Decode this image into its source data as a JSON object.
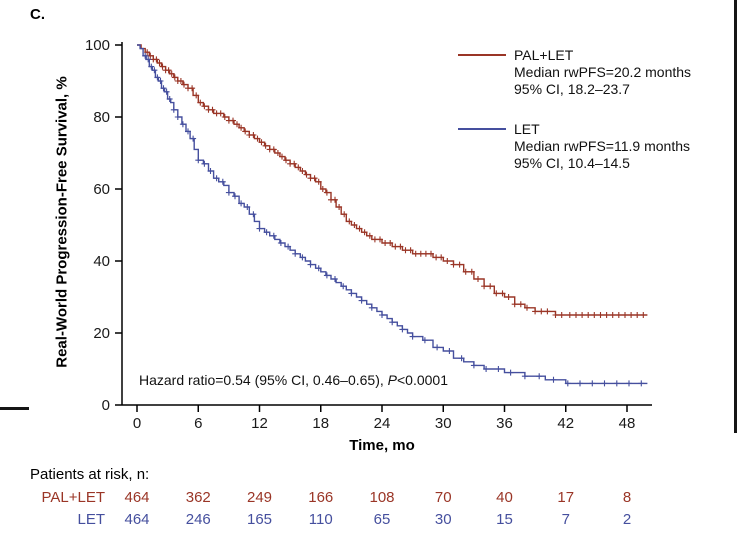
{
  "panel_label": "C.",
  "chart_data": {
    "type": "line",
    "subtype": "kaplan-meier-survival",
    "title": "",
    "xlabel": "Time, mo",
    "ylabel": "Real-World Progression-Free Survival, %",
    "x_ticks": [
      0,
      6,
      12,
      18,
      24,
      30,
      36,
      42,
      48
    ],
    "y_ticks": [
      0,
      20,
      40,
      60,
      80,
      100
    ],
    "xlim": [
      0,
      50
    ],
    "ylim": [
      0,
      100
    ],
    "grid": false,
    "legend_position": "top-right-inside",
    "series": [
      {
        "name": "PAL+LET",
        "color": "#9a3526",
        "median_label": "Median rwPFS=20.2 months",
        "ci_label": "95% CI, 18.2–23.7",
        "points": [
          [
            0,
            100
          ],
          [
            0.4,
            99
          ],
          [
            0.8,
            98
          ],
          [
            1.2,
            97
          ],
          [
            1.6,
            96
          ],
          [
            2,
            95
          ],
          [
            2.4,
            94
          ],
          [
            2.8,
            93
          ],
          [
            3.2,
            92
          ],
          [
            3.6,
            91
          ],
          [
            4,
            90
          ],
          [
            4.5,
            89
          ],
          [
            5,
            88
          ],
          [
            5.5,
            86
          ],
          [
            6,
            84
          ],
          [
            6.5,
            83
          ],
          [
            7,
            82
          ],
          [
            7.5,
            81
          ],
          [
            8,
            81
          ],
          [
            8.5,
            80
          ],
          [
            9,
            79
          ],
          [
            9.5,
            78
          ],
          [
            10,
            77
          ],
          [
            10.5,
            76
          ],
          [
            11,
            75
          ],
          [
            11.5,
            74
          ],
          [
            12,
            73
          ],
          [
            12.5,
            72
          ],
          [
            13,
            71
          ],
          [
            13.5,
            70
          ],
          [
            14,
            69
          ],
          [
            14.5,
            68
          ],
          [
            15,
            67
          ],
          [
            15.5,
            66
          ],
          [
            16,
            65
          ],
          [
            16.5,
            64
          ],
          [
            17,
            63
          ],
          [
            17.5,
            62
          ],
          [
            18,
            60
          ],
          [
            18.5,
            59
          ],
          [
            19,
            57
          ],
          [
            19.5,
            55
          ],
          [
            20,
            53
          ],
          [
            20.5,
            51
          ],
          [
            21,
            50
          ],
          [
            21.5,
            49
          ],
          [
            22,
            48
          ],
          [
            22.5,
            47
          ],
          [
            23,
            46
          ],
          [
            24,
            45
          ],
          [
            25,
            44
          ],
          [
            26,
            43
          ],
          [
            27,
            42
          ],
          [
            28,
            42
          ],
          [
            29,
            41
          ],
          [
            30,
            40
          ],
          [
            31,
            39
          ],
          [
            32,
            37
          ],
          [
            33,
            35
          ],
          [
            34,
            33
          ],
          [
            35,
            31
          ],
          [
            36,
            30
          ],
          [
            37,
            28
          ],
          [
            38,
            27
          ],
          [
            39,
            26
          ],
          [
            40,
            26
          ],
          [
            41,
            25
          ],
          [
            42,
            25
          ],
          [
            50,
            25
          ]
        ],
        "censor_times": [
          1,
          1.3,
          1.6,
          1.9,
          2.2,
          2.5,
          2.8,
          3.1,
          3.4,
          3.7,
          4,
          4.3,
          4.6,
          5,
          5.4,
          5.8,
          6.2,
          6.6,
          7,
          7.4,
          7.8,
          8.2,
          8.6,
          9,
          9.4,
          9.8,
          10.2,
          10.6,
          11,
          11.4,
          11.8,
          12.2,
          12.6,
          13,
          13.4,
          13.8,
          14.2,
          14.6,
          15,
          15.4,
          15.8,
          16.2,
          16.6,
          17,
          17.4,
          17.8,
          18.2,
          18.6,
          19,
          19.4,
          19.8,
          20.3,
          20.8,
          21.3,
          21.8,
          22.3,
          22.8,
          23.3,
          23.8,
          24.3,
          24.8,
          25.3,
          25.8,
          26.3,
          26.8,
          27.3,
          27.8,
          28.3,
          28.8,
          29.3,
          29.8,
          30.4,
          31,
          31.6,
          32.2,
          32.8,
          33.4,
          34,
          34.6,
          35.2,
          35.8,
          36.4,
          37,
          37.6,
          38.2,
          39,
          39.6,
          40.2,
          41,
          41.6,
          42.4,
          43,
          43.6,
          44.2,
          44.8,
          45.4,
          46,
          46.6,
          47.2,
          47.8,
          48.4,
          49,
          49.6
        ]
      },
      {
        "name": "LET",
        "color": "#454f9e",
        "median_label": "Median rwPFS=11.9 months",
        "ci_label": "95% CI, 10.4–14.5",
        "points": [
          [
            0,
            100
          ],
          [
            0.3,
            99
          ],
          [
            0.6,
            97
          ],
          [
            0.9,
            96
          ],
          [
            1.2,
            94
          ],
          [
            1.5,
            93
          ],
          [
            1.8,
            91
          ],
          [
            2.1,
            90
          ],
          [
            2.4,
            88
          ],
          [
            2.7,
            87
          ],
          [
            3,
            85
          ],
          [
            3.3,
            84
          ],
          [
            3.6,
            82
          ],
          [
            4,
            80
          ],
          [
            4.4,
            78
          ],
          [
            4.8,
            76
          ],
          [
            5.2,
            74
          ],
          [
            5.6,
            71
          ],
          [
            6,
            68
          ],
          [
            6.5,
            67
          ],
          [
            7,
            65
          ],
          [
            7.5,
            63
          ],
          [
            8,
            62
          ],
          [
            8.5,
            61
          ],
          [
            9,
            59
          ],
          [
            9.5,
            58
          ],
          [
            10,
            56
          ],
          [
            10.5,
            55
          ],
          [
            11,
            53
          ],
          [
            11.5,
            51
          ],
          [
            12,
            49
          ],
          [
            12.5,
            48
          ],
          [
            13,
            47
          ],
          [
            13.5,
            46
          ],
          [
            14,
            45
          ],
          [
            14.5,
            44
          ],
          [
            15,
            43
          ],
          [
            15.5,
            42
          ],
          [
            16,
            41
          ],
          [
            16.5,
            40
          ],
          [
            17,
            39
          ],
          [
            17.5,
            38
          ],
          [
            18,
            37
          ],
          [
            18.5,
            36
          ],
          [
            19,
            35
          ],
          [
            19.5,
            34
          ],
          [
            20,
            33
          ],
          [
            20.5,
            32
          ],
          [
            21,
            31
          ],
          [
            21.5,
            30
          ],
          [
            22,
            29
          ],
          [
            22.5,
            28
          ],
          [
            23,
            27
          ],
          [
            23.5,
            26
          ],
          [
            24,
            25
          ],
          [
            24.5,
            24
          ],
          [
            25,
            23
          ],
          [
            25.5,
            22
          ],
          [
            26,
            21
          ],
          [
            26.5,
            20
          ],
          [
            27,
            19
          ],
          [
            28,
            18
          ],
          [
            29,
            16
          ],
          [
            30,
            15
          ],
          [
            31,
            13
          ],
          [
            32,
            12
          ],
          [
            33,
            11
          ],
          [
            34,
            10
          ],
          [
            35,
            10
          ],
          [
            36,
            9
          ],
          [
            37,
            9
          ],
          [
            38,
            8
          ],
          [
            39,
            8
          ],
          [
            40,
            7
          ],
          [
            41,
            7
          ],
          [
            42,
            6
          ],
          [
            50,
            6
          ]
        ],
        "censor_times": [
          0.8,
          1.1,
          1.4,
          1.7,
          2,
          2.3,
          2.6,
          2.9,
          3.2,
          3.6,
          4,
          4.5,
          5,
          5.5,
          6,
          6.6,
          7.2,
          7.8,
          8.4,
          9,
          9.6,
          10.2,
          10.8,
          11.4,
          12,
          12.7,
          13.4,
          14.1,
          14.8,
          15.5,
          16.2,
          17,
          17.8,
          18.6,
          19.4,
          20.2,
          21,
          22,
          23,
          24,
          25,
          26,
          27,
          28.2,
          29.4,
          30.6,
          31.8,
          33,
          34.2,
          35.4,
          36.6,
          38,
          39.4,
          40.8,
          42.2,
          43.4,
          44.6,
          45.8,
          47,
          48.2,
          49.4
        ]
      }
    ]
  },
  "annotation": {
    "prefix": "Hazard ratio=0.54 (95% CI, 0.46–0.65), ",
    "p": "P",
    "suffix": "<0.0001"
  },
  "risk_table": {
    "label": "Patients at risk, n:",
    "times": [
      0,
      6,
      12,
      18,
      24,
      30,
      36,
      42,
      48
    ],
    "rows": [
      {
        "name": "PAL+LET",
        "color": "#9a3526",
        "counts": [
          464,
          362,
          249,
          166,
          108,
          70,
          40,
          17,
          8
        ]
      },
      {
        "name": "LET",
        "color": "#454f9e",
        "counts": [
          464,
          246,
          165,
          110,
          65,
          30,
          15,
          7,
          2
        ]
      }
    ]
  }
}
